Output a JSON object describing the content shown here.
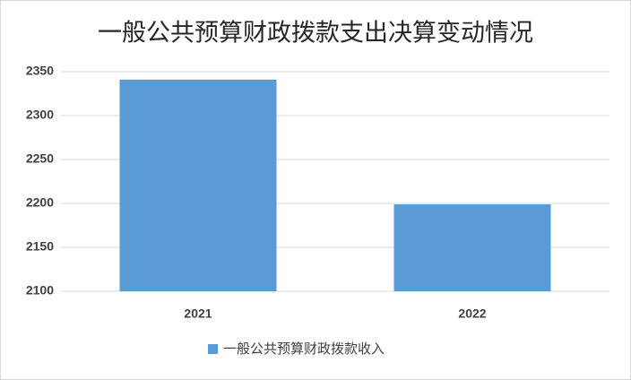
{
  "chart_data": {
    "type": "bar",
    "title": "一般公共预算财政拨款支出决算变动情况",
    "categories": [
      "2021",
      "2022"
    ],
    "series": [
      {
        "name": "一般公共预算财政拨款收入",
        "color": "#5b9bd5",
        "values": [
          2341,
          2199
        ]
      }
    ],
    "ylim": [
      2100,
      2350
    ],
    "yticks": [
      2100,
      2150,
      2200,
      2250,
      2300,
      2350
    ],
    "grid": true,
    "legend": "bottom"
  }
}
